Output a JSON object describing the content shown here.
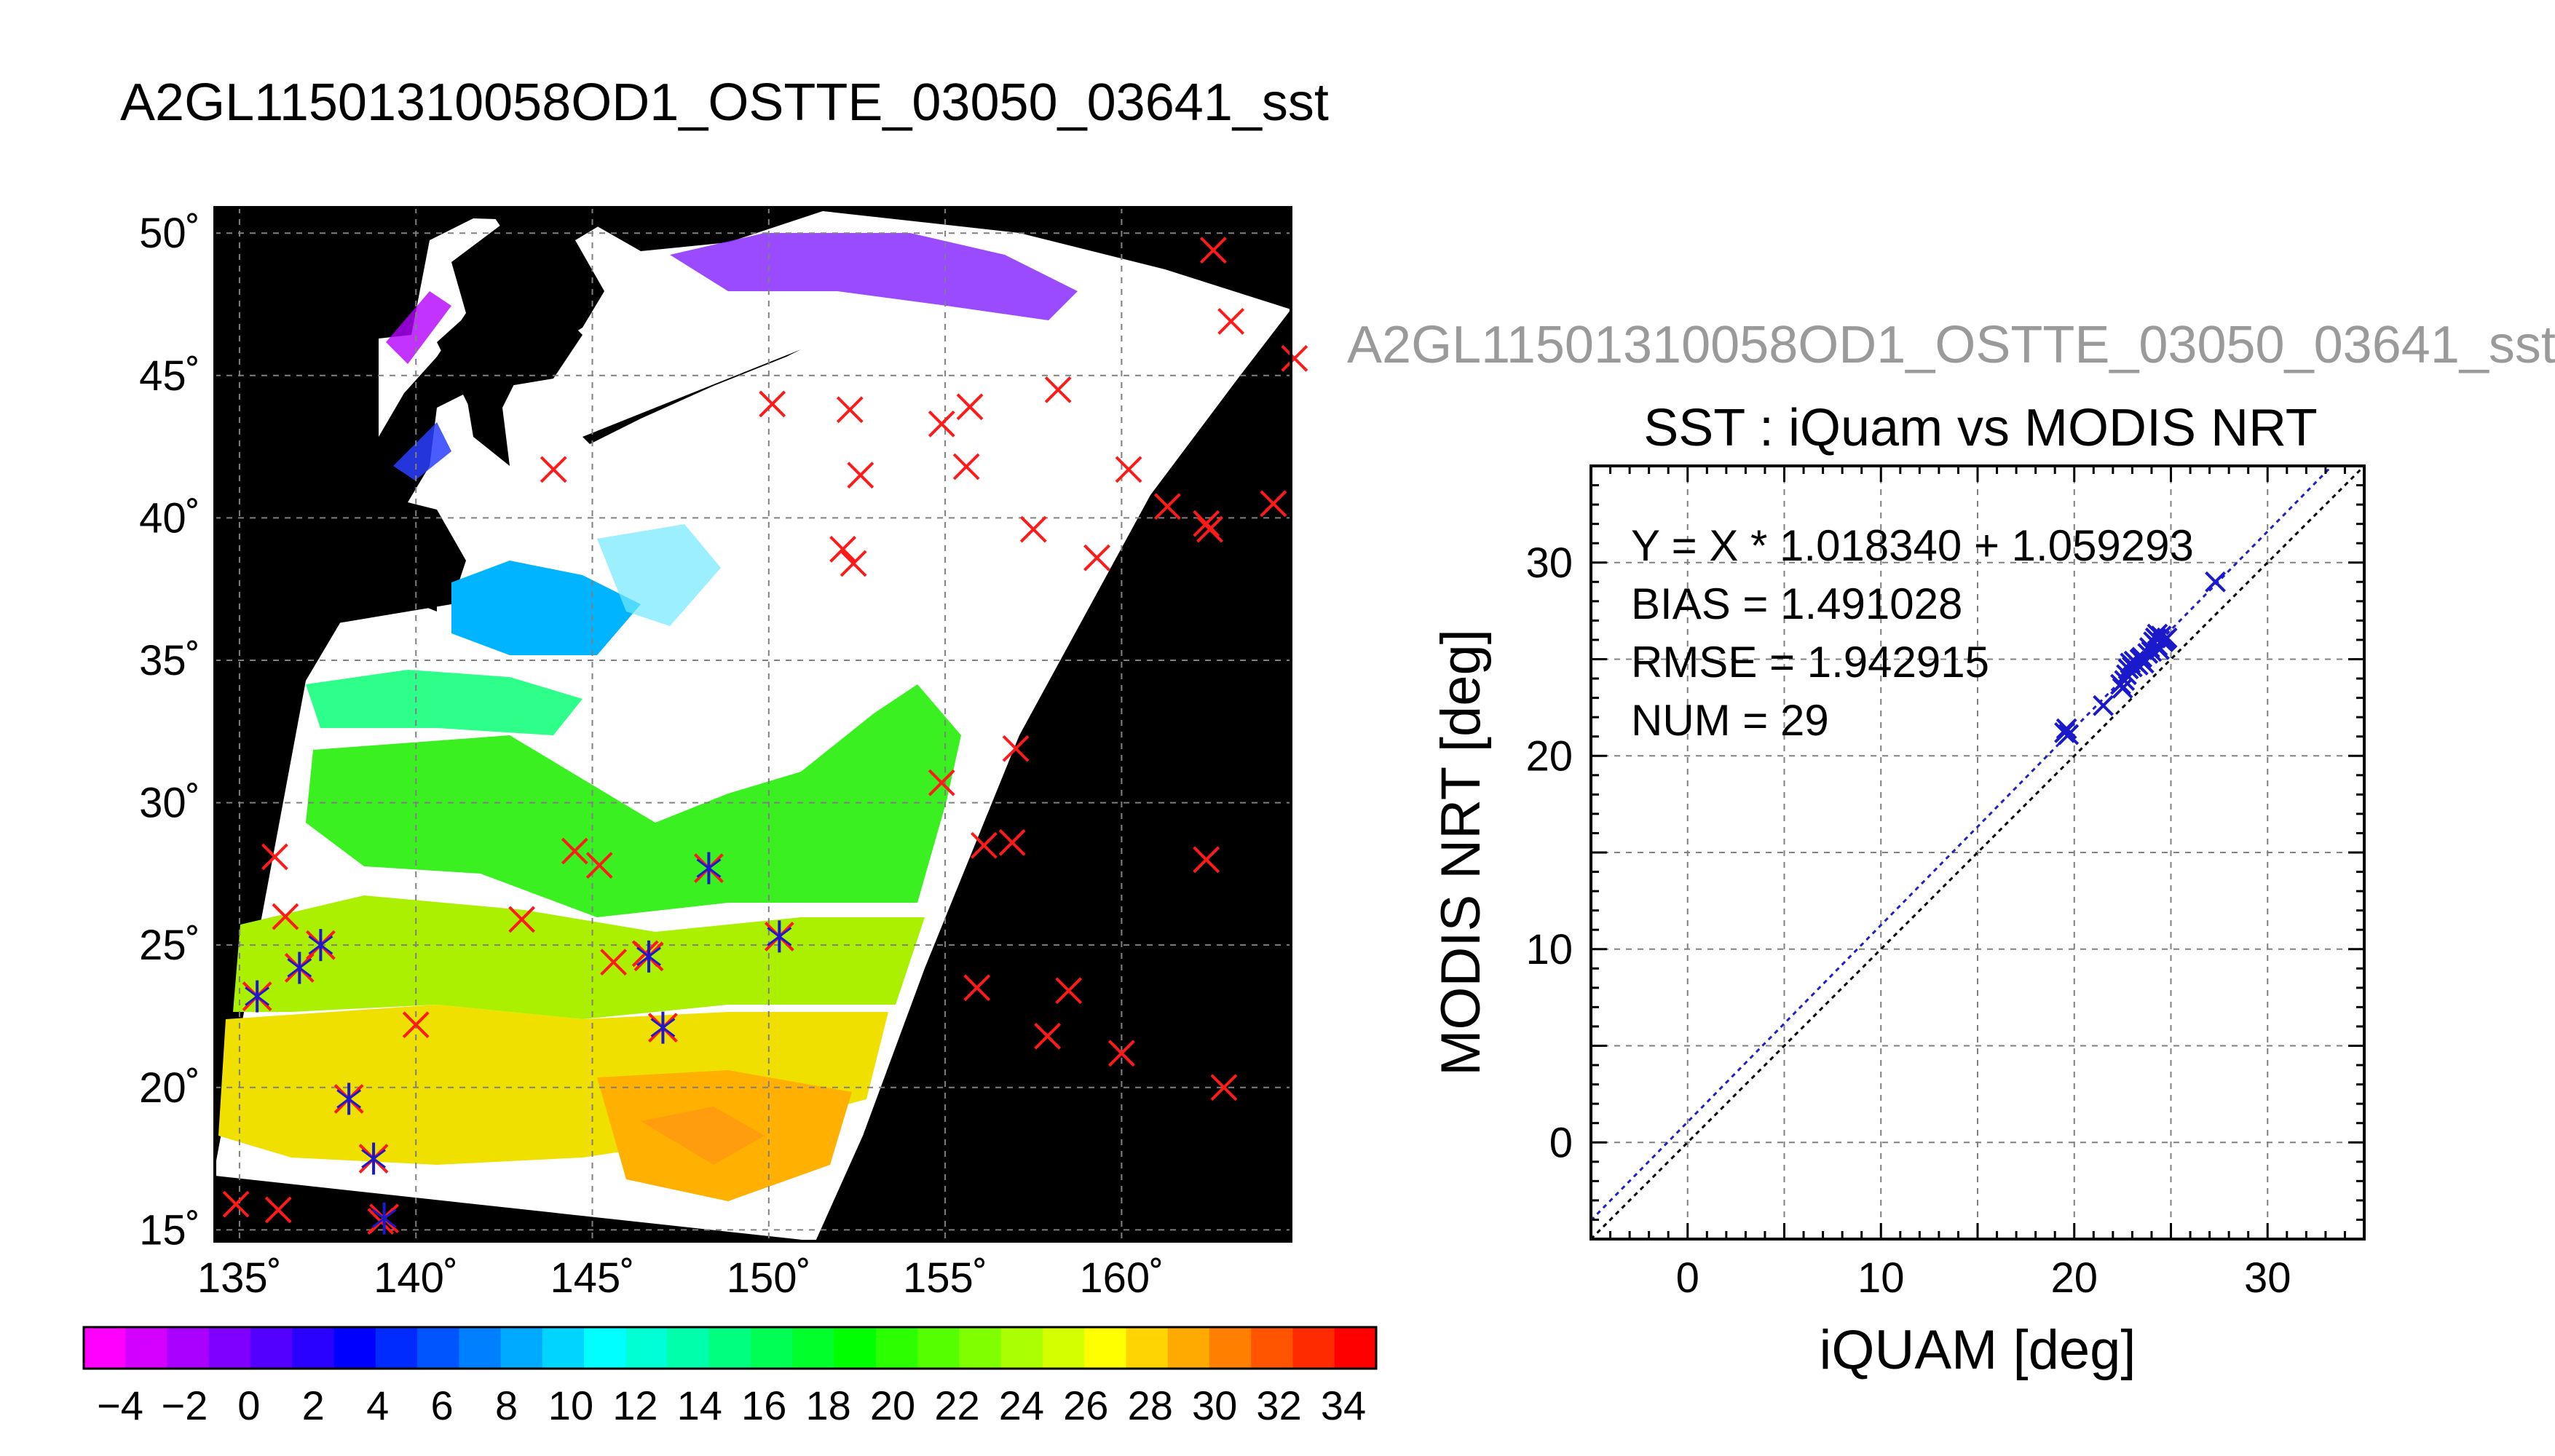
{
  "title": "A2GL11501310058OD1_OSTTE_03050_03641_sst",
  "colors": {
    "background": "#ffffff",
    "land": "#000000",
    "cloud": "#ffffff",
    "marker_red": "#ff1a1a",
    "marker_blue": "#1a1acc",
    "fit_line": "#1f1fcc",
    "identity_line": "#000000",
    "grid": "#808080",
    "subtitle_gray": "#9a9a9a"
  },
  "map": {
    "lat_ticks": [
      "50˚",
      "45˚",
      "40˚",
      "35˚",
      "30˚",
      "25˚",
      "20˚",
      "15˚"
    ],
    "lon_ticks": [
      "135˚",
      "140˚",
      "145˚",
      "150˚",
      "155˚",
      "160˚"
    ],
    "lat_values": [
      50,
      45,
      40,
      35,
      30,
      25,
      20,
      15
    ],
    "lon_values": [
      135,
      140,
      145,
      150,
      155,
      160
    ],
    "lat_range": [
      14.6,
      50.9
    ],
    "lon_range": [
      134.3,
      164.8
    ],
    "iquam_points_red": [
      [
        162.6,
        49.4
      ],
      [
        163.1,
        46.9
      ],
      [
        164.9,
        45.6
      ],
      [
        143.9,
        41.7
      ],
      [
        150.1,
        44.0
      ],
      [
        152.3,
        43.8
      ],
      [
        152.6,
        41.5
      ],
      [
        154.9,
        43.3
      ],
      [
        155.7,
        43.9
      ],
      [
        155.6,
        41.8
      ],
      [
        158.2,
        44.5
      ],
      [
        160.2,
        41.7
      ],
      [
        161.3,
        40.4
      ],
      [
        162.4,
        39.8
      ],
      [
        162.5,
        39.6
      ],
      [
        164.3,
        40.5
      ],
      [
        157.5,
        39.6
      ],
      [
        159.3,
        38.6
      ],
      [
        152.1,
        38.9
      ],
      [
        152.4,
        38.4
      ],
      [
        157.0,
        31.9
      ],
      [
        154.9,
        30.7
      ],
      [
        156.9,
        28.6
      ],
      [
        156.1,
        28.5
      ],
      [
        162.4,
        28.0
      ],
      [
        144.5,
        28.3
      ],
      [
        145.2,
        27.8
      ],
      [
        136.0,
        28.1
      ],
      [
        136.3,
        26.0
      ],
      [
        143.0,
        25.9
      ],
      [
        145.6,
        24.4
      ],
      [
        146.5,
        24.7
      ],
      [
        155.9,
        23.5
      ],
      [
        158.5,
        23.4
      ],
      [
        157.9,
        21.8
      ],
      [
        160.0,
        21.2
      ],
      [
        162.9,
        20.0
      ],
      [
        140.0,
        22.2
      ],
      [
        134.9,
        15.9
      ],
      [
        136.1,
        15.7
      ],
      [
        139.0,
        15.3
      ]
    ],
    "matched_points": [
      [
        135.5,
        23.2
      ],
      [
        136.7,
        24.2
      ],
      [
        137.3,
        25.0
      ],
      [
        138.1,
        19.6
      ],
      [
        138.8,
        17.5
      ],
      [
        139.1,
        15.4
      ],
      [
        146.6,
        24.6
      ],
      [
        147.0,
        22.1
      ],
      [
        148.3,
        27.7
      ],
      [
        150.3,
        25.3
      ]
    ]
  },
  "colorbar": {
    "tick_labels": [
      "−4",
      "−2",
      "0",
      "2",
      "4",
      "6",
      "8",
      "10",
      "12",
      "14",
      "16",
      "18",
      "20",
      "22",
      "24",
      "26",
      "28",
      "30",
      "32",
      "34"
    ],
    "colors": [
      "#ff00ff",
      "#d400ff",
      "#a900ff",
      "#7f00ff",
      "#5400ff",
      "#2a00ff",
      "#0000ff",
      "#002bff",
      "#0055ff",
      "#007fff",
      "#00aaff",
      "#00d4ff",
      "#00ffff",
      "#00ffd4",
      "#00ffaa",
      "#00ff7f",
      "#00ff55",
      "#00ff2b",
      "#00ff00",
      "#2bff00",
      "#55ff00",
      "#7fff00",
      "#aaff00",
      "#d4ff00",
      "#ffff00",
      "#ffd400",
      "#ffaa00",
      "#ff7f00",
      "#ff5500",
      "#ff2b00",
      "#ff0000"
    ]
  },
  "chart_data": {
    "type": "scatter",
    "subtitle": "A2GL11501310058OD1_OSTTE_03050_03641_sst",
    "title": "SST : iQuam vs MODIS NRT",
    "xlabel": "iQUAM [deg]",
    "ylabel": "MODIS NRT [deg]",
    "xlim": [
      -5,
      35
    ],
    "ylim": [
      -5,
      35
    ],
    "x_ticks": [
      0,
      10,
      20,
      30
    ],
    "y_ticks": [
      0,
      10,
      20,
      30
    ],
    "grid": true,
    "annotations": [
      "Y = X * 1.018340 + 1.059293",
      "BIAS = 1.491028",
      "RMSE = 1.942915",
      "NUM = 29"
    ],
    "fit": {
      "slope": 1.01834,
      "intercept": 1.059293
    },
    "points": [
      [
        19.5,
        21.2
      ],
      [
        19.6,
        21.4
      ],
      [
        19.7,
        21.1
      ],
      [
        21.5,
        22.6
      ],
      [
        22.4,
        23.7
      ],
      [
        22.6,
        23.9
      ],
      [
        22.8,
        24.5
      ],
      [
        22.9,
        24.8
      ],
      [
        23.0,
        24.6
      ],
      [
        23.1,
        24.9
      ],
      [
        23.3,
        24.7
      ],
      [
        23.4,
        25.0
      ],
      [
        23.6,
        24.8
      ],
      [
        23.9,
        25.6
      ],
      [
        24.0,
        25.4
      ],
      [
        24.1,
        25.9
      ],
      [
        24.2,
        26.1
      ],
      [
        24.3,
        25.7
      ],
      [
        24.4,
        25.5
      ],
      [
        24.5,
        26.2
      ],
      [
        24.6,
        25.9
      ],
      [
        24.7,
        26.0
      ],
      [
        23.5,
        25.1
      ],
      [
        22.7,
        24.2
      ],
      [
        24.3,
        26.3
      ],
      [
        23.8,
        25.3
      ],
      [
        24.8,
        26.1
      ],
      [
        22.5,
        23.5
      ],
      [
        27.3,
        29.0
      ]
    ]
  }
}
